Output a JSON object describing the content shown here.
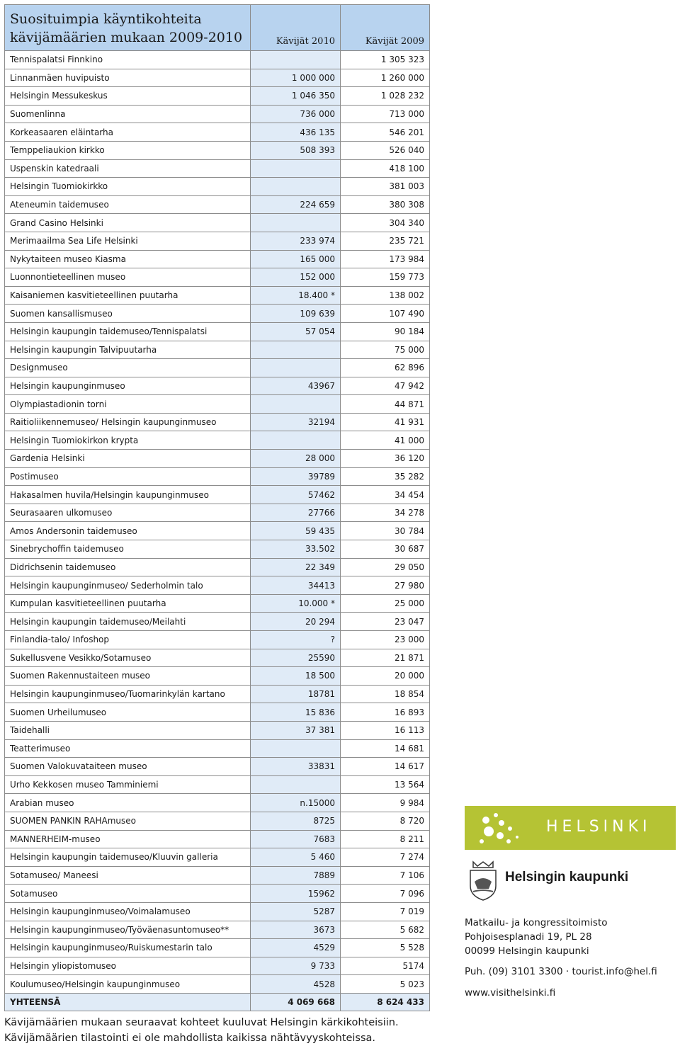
{
  "table": {
    "title": [
      "Suosituimpia käyntikohteita",
      "kävijämäärien mukaan 2009-2010"
    ],
    "columns": [
      "Kävijät 2010",
      "Kävijät 2009"
    ],
    "rows": [
      [
        "Tennispalatsi Finnkino",
        null,
        "1 305 323"
      ],
      [
        "Linnanmäen huvipuisto",
        "1 000 000",
        "1 260 000"
      ],
      [
        "Helsingin Messukeskus",
        "1 046 350",
        "1 028 232"
      ],
      [
        "Suomenlinna",
        "736 000",
        "713 000"
      ],
      [
        "Korkeasaaren eläintarha",
        "436 135",
        "546 201"
      ],
      [
        "Temppeliaukion kirkko",
        "508 393",
        "526 040"
      ],
      [
        "Uspenskin katedraali",
        null,
        "418 100"
      ],
      [
        "Helsingin Tuomiokirkko",
        null,
        "381 003"
      ],
      [
        "Ateneumin taidemuseo",
        "224 659",
        "380 308"
      ],
      [
        "Grand Casino Helsinki",
        null,
        "304 340"
      ],
      [
        "Merimaailma Sea Life Helsinki",
        "233 974",
        "235 721"
      ],
      [
        "Nykytaiteen museo Kiasma",
        "165 000",
        "173 984"
      ],
      [
        "Luonnontieteellinen museo",
        "152 000",
        "159 773"
      ],
      [
        "Kaisaniemen kasvitieteellinen puutarha",
        "18.400 *",
        "138 002"
      ],
      [
        "Suomen kansallismuseo",
        "109 639",
        "107 490"
      ],
      [
        "Helsingin kaupungin taidemuseo/Tennispalatsi",
        "57 054",
        "90 184"
      ],
      [
        "Helsingin kaupungin Talvipuutarha",
        null,
        "75 000"
      ],
      [
        "Designmuseo",
        null,
        "62 896"
      ],
      [
        "Helsingin kaupunginmuseo",
        "43967",
        "47 942"
      ],
      [
        "Olympiastadionin torni",
        null,
        "44 871"
      ],
      [
        "Raitioliikennemuseo/ Helsingin kaupunginmuseo",
        "32194",
        "41 931"
      ],
      [
        "Helsingin Tuomiokirkon krypta",
        null,
        "41 000"
      ],
      [
        "Gardenia Helsinki",
        "28 000",
        "36 120"
      ],
      [
        "Postimuseo",
        "39789",
        "35 282"
      ],
      [
        "Hakasalmen huvila/Helsingin kaupunginmuseo",
        "57462",
        "34 454"
      ],
      [
        "Seurasaaren ulkomuseo",
        "27766",
        "34 278"
      ],
      [
        "Amos Andersonin taidemuseo",
        "59 435",
        "30 784"
      ],
      [
        "Sinebrychoffin taidemuseo",
        "33.502",
        "30 687"
      ],
      [
        "Didrichsenin taidemuseo",
        "22 349",
        "29 050"
      ],
      [
        "Helsingin kaupunginmuseo/ Sederholmin talo",
        "34413",
        "27 980"
      ],
      [
        "Kumpulan kasvitieteellinen puutarha",
        "10.000 *",
        "25 000"
      ],
      [
        "Helsingin kaupungin taidemuseo/Meilahti",
        "20 294",
        "23 047"
      ],
      [
        "Finlandia-talo/ Infoshop",
        "?",
        "23 000"
      ],
      [
        "Sukellusvene Vesikko/Sotamuseo",
        "25590",
        "21 871"
      ],
      [
        "Suomen Rakennustaiteen museo",
        "18 500",
        "20 000"
      ],
      [
        "Helsingin kaupunginmuseo/Tuomarinkylän kartano",
        "18781",
        "18 854"
      ],
      [
        "Suomen Urheilumuseo",
        "15 836",
        "16 893"
      ],
      [
        "Taidehalli",
        "37 381",
        "16 113"
      ],
      [
        "Teatterimuseo",
        null,
        "14 681"
      ],
      [
        "Suomen Valokuvataiteen museo",
        "33831",
        "14 617"
      ],
      [
        "Urho Kekkosen museo Tamminiemi",
        null,
        "13 564"
      ],
      [
        "Arabian museo",
        "n.15000",
        "9 984"
      ],
      [
        "SUOMEN PANKIN RAHAmuseo",
        "8725",
        "8 720"
      ],
      [
        "MANNERHEIM-museo",
        "7683",
        "8 211"
      ],
      [
        "Helsingin kaupungin taidemuseo/Kluuvin galleria",
        "5 460",
        "7 274"
      ],
      [
        "Sotamuseo/ Maneesi",
        "7889",
        "7 106"
      ],
      [
        "Sotamuseo",
        "15962",
        "7 096"
      ],
      [
        "Helsingin kaupunginmuseo/Voimalamuseo",
        "5287",
        "7 019"
      ],
      [
        "Helsingin kaupunginmuseo/Työväenasuntomuseo**",
        "3673",
        "5 682"
      ],
      [
        "Helsingin kaupunginmuseo/Ruiskumestarin talo",
        "4529",
        "5 528"
      ],
      [
        "Helsingin yliopistomuseo",
        "9 733",
        "5174"
      ],
      [
        "Koulumuseo/Helsingin kaupunginmuseo",
        "4528",
        "5 023"
      ]
    ],
    "total": [
      "YHTEENSÄ",
      "4 069 668",
      "8 624 433"
    ]
  },
  "sidebar": {
    "logo": "HELSINKI",
    "org": "Helsingin kaupunki",
    "address": [
      "Matkailu- ja kongressitoimisto",
      "Pohjoisesplanadi 19, PL 28",
      "00099 Helsingin kaupunki"
    ],
    "contact": "Puh. (09) 3101 3300 · tourist.info@hel.fi",
    "web": "www.visithelsinki.fi"
  },
  "notes": [
    "Kävijämäärien mukaan seuraavat kohteet kuuluvat Helsingin kärkikohteisiin.",
    "Kävijämäärien tilastointi ei ole mahdollista kaikissa nähtävyyskohteissa."
  ]
}
